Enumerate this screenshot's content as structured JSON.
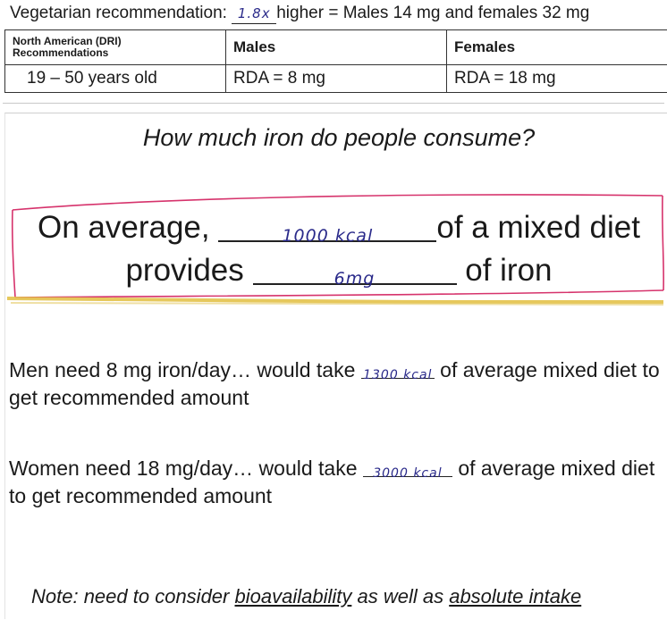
{
  "top": {
    "veg_prefix": "Vegetarian recommendation:",
    "veg_fill": "1.8x",
    "veg_suffix": "higher = Males 14 mg and females 32 mg",
    "table": {
      "headers": [
        "North American (DRI) Recommendations",
        "Males",
        "Females"
      ],
      "row": [
        "19 – 50 years old",
        "RDA = 8 mg",
        "RDA = 18 mg"
      ]
    }
  },
  "slide": {
    "question": "How much iron do people consume?",
    "line1_prefix": "On average,",
    "line1_fill": "1000 kcal",
    "line1_suffix": "of a mixed diet",
    "line2_prefix": "provides",
    "line2_fill": "6mg",
    "line2_suffix": "of iron",
    "men_prefix": "Men need 8 mg iron/day… would take",
    "men_fill": "1300 kcal",
    "men_suffix": "of average mixed diet to get recommended amount",
    "women_prefix": "Women need  18 mg/day… would take",
    "women_fill": "3000 kcal",
    "women_suffix": "of average mixed diet to get recommended amount",
    "note_prefix": "Note: need to consider",
    "note_term1": "bioavailability",
    "note_mid": "as well as",
    "note_term2": "absolute intake"
  },
  "colors": {
    "annotation_pink": "#d6336c",
    "highlight_yellow": "#e3c24a",
    "handwriting": "#2a2a8a"
  }
}
